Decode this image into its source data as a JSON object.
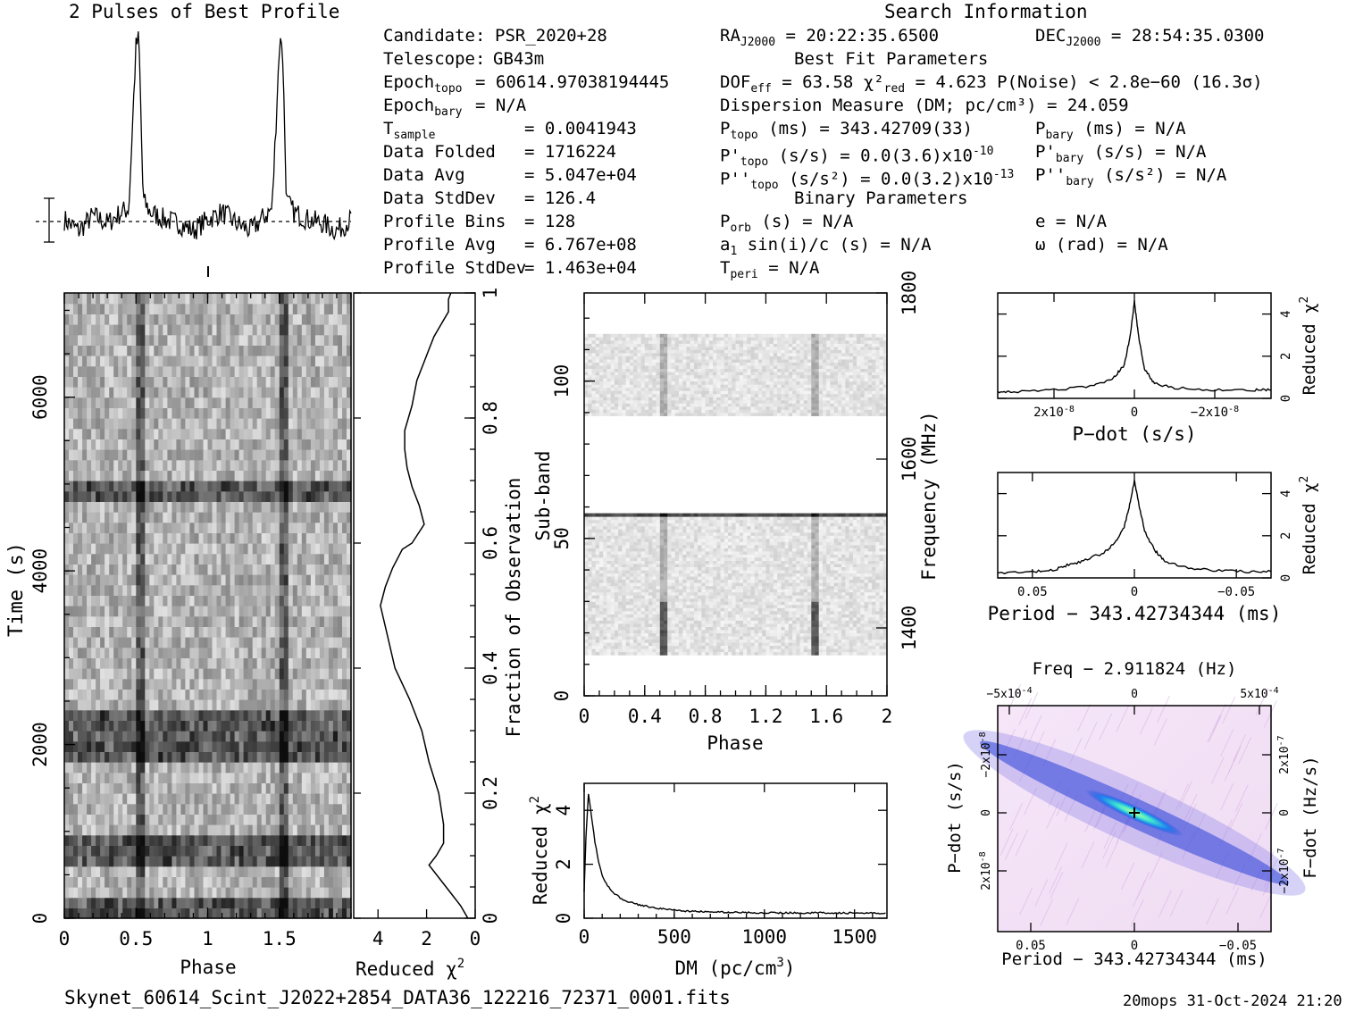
{
  "header": {
    "profile_title": "2 Pulses of Best Profile",
    "search_title": "Search Information"
  },
  "candidate_info": [
    {
      "label": "Candidate:",
      "value": "PSR_2020+28"
    },
    {
      "label": "Telescope:",
      "value": "GB43m"
    },
    {
      "label": "Epoch_topo",
      "value": "= 60614.97038194445"
    },
    {
      "label": "Epoch_bary",
      "value": "= N/A"
    },
    {
      "label": "T_sample",
      "value": "=   0.0041943"
    },
    {
      "label": "Data Folded",
      "value": "=   1716224"
    },
    {
      "label": "Data Avg",
      "value": "=   5.047e+04"
    },
    {
      "label": "Data StdDev",
      "value": "=   126.4"
    },
    {
      "label": "Profile Bins",
      "value": "=   128"
    },
    {
      "label": "Profile Avg",
      "value": "=   6.767e+08"
    },
    {
      "label": "Profile StdDev",
      "value": "=   1.463e+04"
    }
  ],
  "search_info": {
    "ra": "RA_J2000 = 20:22:35.6500",
    "dec": "DEC_J2000 = 28:54:35.0300",
    "best_fit_title": "Best Fit Parameters",
    "dof_line": "DOF_eff = 63.58  χ²_red = 4.623  P(Noise) < 2.8e−60  (16.3σ)",
    "dm_line": "Dispersion Measure (DM; pc/cm³) = 24.059",
    "ptopo": "P_topo (ms) =  343.42709(33)",
    "pbary": "P_bary (ms) = N/A",
    "pdot_topo": "P'_topo (s/s) = 0.0(3.6)x10^-10",
    "pdot_bary": "P'_bary (s/s) = N/A",
    "pddot_topo": "P''_topo (s/s²) = 0.0(3.2)x10^-13",
    "pddot_bary": "P''_bary (s/s²) = N/A",
    "binary_title": "Binary Parameters",
    "porb": "P_orb (s) = N/A",
    "ecc": "e = N/A",
    "a1sini": "a_1 sin(i)/c (s) = N/A",
    "omega": "ω (rad) = N/A",
    "tperi": "T_peri = N/A"
  },
  "footer": {
    "filename": "Skynet_60614_Scint_J2022+2854_DATA36_122216_72371_0001.fits",
    "stamp": "20mops 31-Oct-2024 21:20"
  },
  "colors": {
    "ink": "#000000",
    "ppdot_bg": "#f3e2f6",
    "ppdot_band": "#2a3fd8",
    "ppdot_core": "#38e8d0"
  },
  "chart_data": [
    {
      "name": "profile",
      "type": "line",
      "title": "2 Pulses of Best Profile",
      "x": [
        0,
        0.1,
        0.2,
        0.3,
        0.4,
        0.45,
        0.5,
        0.52,
        0.55,
        0.6,
        0.7,
        0.8,
        0.9,
        1.0,
        1.1,
        1.2,
        1.3,
        1.4,
        1.45,
        1.5,
        1.52,
        1.55,
        1.6,
        1.7,
        1.8,
        1.9,
        2.0
      ],
      "y": [
        0.02,
        -0.04,
        0.04,
        0.0,
        0.06,
        0.08,
        0.95,
        1.0,
        0.12,
        0.06,
        0.02,
        0.0,
        -0.04,
        0.02,
        0.06,
        0.0,
        -0.04,
        0.04,
        0.08,
        0.95,
        1.0,
        0.12,
        0.06,
        0.02,
        0.0,
        -0.04,
        0.02
      ]
    },
    {
      "name": "time_phase",
      "type": "heatmap",
      "xlabel": "Phase",
      "ylabel": "Time (s)",
      "xticks": [
        "0",
        "0.5",
        "1",
        "1.5"
      ],
      "yticks": [
        "0",
        "2000",
        "4000",
        "6000"
      ],
      "xlim": [
        0,
        2
      ],
      "ylim": [
        0,
        7200
      ],
      "pulse_phases": [
        0.53,
        1.53
      ],
      "dark_time_bands": [
        40,
        800,
        2000,
        2250,
        4950
      ],
      "rows": 60
    },
    {
      "name": "chi2_vs_fraction",
      "type": "line",
      "xlabel": "Reduced χ²",
      "ylabel": "Fraction of Observation",
      "xticks": [
        "4",
        "2",
        "0"
      ],
      "yticks": [
        "0",
        "0.2",
        "0.4",
        "0.6",
        "0.8",
        "1"
      ],
      "xlim": [
        5,
        0
      ],
      "ylim": [
        0,
        1
      ],
      "chi2": [
        0.3,
        0.6,
        1.2,
        1.9,
        1.6,
        1.3,
        1.3,
        1.5,
        1.9,
        2.2,
        2.7,
        3.3,
        3.6,
        3.9,
        3.7,
        3.4,
        3.0,
        2.6,
        2.1,
        2.3,
        2.6,
        2.8,
        2.9,
        2.9,
        2.6,
        2.4,
        2.1,
        1.9,
        1.7,
        1.4,
        1.1,
        1.1,
        1.0
      ],
      "fraction": [
        0.0,
        0.02,
        0.05,
        0.085,
        0.1,
        0.12,
        0.15,
        0.2,
        0.25,
        0.3,
        0.35,
        0.4,
        0.45,
        0.5,
        0.53,
        0.56,
        0.59,
        0.6,
        0.63,
        0.66,
        0.69,
        0.72,
        0.75,
        0.78,
        0.82,
        0.86,
        0.89,
        0.91,
        0.93,
        0.95,
        0.97,
        0.99,
        1.0
      ]
    },
    {
      "name": "subband_phase",
      "type": "heatmap",
      "xlabel": "Phase",
      "ylabel": "Sub-band",
      "y2label": "Frequency (MHz)",
      "xticks": [
        "0",
        "0.4",
        "0.8",
        "1.2",
        "1.6",
        "2"
      ],
      "yticks": [
        "0",
        "50",
        "100"
      ],
      "y2ticks": [
        "1400",
        "1600",
        "1800"
      ],
      "xlim": [
        0,
        2
      ],
      "ylim": [
        0,
        128
      ],
      "pulse_phases": [
        0.53,
        1.53
      ],
      "filled_subbands": [
        [
          13,
          58
        ],
        [
          89,
          115
        ]
      ],
      "dark_subband": 58
    },
    {
      "name": "dm_curve",
      "type": "line",
      "xlabel": "DM (pc/cm³)",
      "ylabel": "Reduced χ²",
      "xticks": [
        "0",
        "500",
        "1000",
        "1500"
      ],
      "yticks": [
        "0",
        "2",
        "4"
      ],
      "xlim": [
        0,
        1680
      ],
      "ylim": [
        0,
        5
      ],
      "x": [
        0,
        10,
        24,
        40,
        60,
        80,
        100,
        130,
        160,
        200,
        250,
        300,
        400,
        500,
        600,
        800,
        1000,
        1200,
        1400,
        1680
      ],
      "y": [
        1.0,
        3.0,
        4.6,
        3.8,
        2.8,
        2.1,
        1.6,
        1.2,
        0.95,
        0.75,
        0.6,
        0.5,
        0.38,
        0.3,
        0.25,
        0.22,
        0.2,
        0.2,
        0.2,
        0.18
      ]
    },
    {
      "name": "pdot_curve",
      "type": "line",
      "xlabel": "P−dot (s/s)",
      "ylabel": "Reduced χ²",
      "xticks": [
        "2x10^-8",
        "0",
        "−2x10^-8"
      ],
      "yticks": [
        "0",
        "2",
        "4"
      ],
      "xlim": [
        3.4e-08,
        -3.4e-08
      ],
      "ylim": [
        0,
        5
      ],
      "x": [
        3.4e-08,
        3e-08,
        2e-08,
        1e-08,
        5e-09,
        2.5e-09,
        1e-09,
        0,
        -1e-09,
        -2.5e-09,
        -5e-09,
        -1e-08,
        -2e-08,
        -3e-08,
        -3.4e-08
      ],
      "y": [
        0.3,
        0.3,
        0.4,
        0.6,
        1.0,
        1.6,
        3.0,
        4.6,
        3.0,
        1.4,
        0.7,
        0.5,
        0.4,
        0.4,
        0.4
      ]
    },
    {
      "name": "period_curve",
      "type": "line",
      "xlabel": "Period − 343.42734344 (ms)",
      "ylabel": "Reduced χ²",
      "xticks": [
        "0.05",
        "0",
        "−0.05"
      ],
      "yticks": [
        "0",
        "2",
        "4"
      ],
      "xlim": [
        0.067,
        -0.067
      ],
      "ylim": [
        0,
        5
      ],
      "x": [
        0.067,
        0.05,
        0.04,
        0.033,
        0.025,
        0.015,
        0.01,
        0.005,
        0.002,
        0,
        -0.002,
        -0.005,
        -0.01,
        -0.015,
        -0.025,
        -0.04,
        -0.055,
        -0.067
      ],
      "y": [
        0.2,
        0.3,
        0.35,
        0.6,
        0.8,
        1.2,
        1.6,
        2.4,
        3.6,
        4.6,
        3.6,
        2.2,
        1.3,
        0.8,
        0.5,
        0.35,
        0.3,
        0.3
      ]
    },
    {
      "name": "p_pdot_plane",
      "type": "heatmap",
      "title": "Freq − 2.911824 (Hz)",
      "xlabel": "Period − 343.42734344 (ms)",
      "ylabel": "P−dot (s/s)",
      "y2label": "F−dot (Hz/s)",
      "xticks": [
        "0.05",
        "0",
        "−0.05"
      ],
      "x2ticks": [
        "−5x10^-4",
        "0",
        "5x10^-4"
      ],
      "yticks": [
        "−2x10^-8",
        "0",
        "2x10^-8"
      ],
      "y2ticks": [
        "2x10^-7",
        "0",
        "−2x10^-7"
      ],
      "best": [
        0,
        0
      ]
    }
  ]
}
